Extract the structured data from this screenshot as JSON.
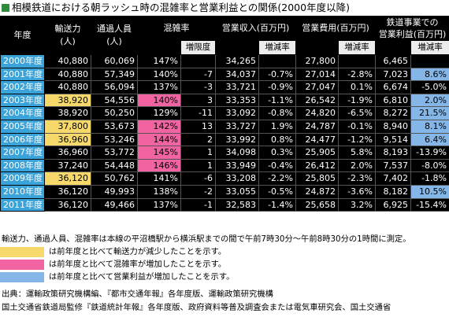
{
  "title": "相模鉄道における朝ラッシュ時の混雑率と営業利益との関係(2000年度以降)",
  "headers": {
    "year": "年度",
    "capacity": "輸送力\n(人)",
    "passengers": "通過人員\n(人)",
    "congestion": "混雑率",
    "revenue": "営業収入(百万円)",
    "expense": "営業費用(百万円)",
    "profit": "鉄道事業での\n営業利益(百万円)",
    "delta": "増限度",
    "change": "増減率"
  },
  "colors": {
    "yellow": "#f6d96a",
    "pink": "#f263a1",
    "blue": "#85b6e8",
    "year": "#3aa3d9"
  },
  "rows": [
    {
      "year": "2000年度",
      "cap": "40,880",
      "pax": "60,069",
      "cr": "147%",
      "dlt": "",
      "rev": "34,265",
      "revc": "",
      "exp": "27,800",
      "expc": "",
      "pro": "6,465",
      "proc": "",
      "hl": {}
    },
    {
      "year": "2001年度",
      "cap": "40,880",
      "pax": "57,349",
      "cr": "140%",
      "dlt": "-7",
      "rev": "34,037",
      "revc": "-0.7%",
      "exp": "27,014",
      "expc": "-2.8%",
      "pro": "7,023",
      "proc": "8.6%",
      "hl": {
        "proc": "b"
      }
    },
    {
      "year": "2002年度",
      "cap": "40,880",
      "pax": "56,094",
      "cr": "137%",
      "dlt": "-3",
      "rev": "33,721",
      "revc": "-0.9%",
      "exp": "27,047",
      "expc": "0.1%",
      "pro": "6,674",
      "proc": "-5.0%",
      "hl": {}
    },
    {
      "year": "2003年度",
      "cap": "38,920",
      "pax": "54,556",
      "cr": "140%",
      "dlt": "3",
      "rev": "33,353",
      "revc": "-1.1%",
      "exp": "26,542",
      "expc": "-1.9%",
      "pro": "6,810",
      "proc": "2.0%",
      "hl": {
        "cap": "y",
        "cr": "p",
        "proc": "b"
      }
    },
    {
      "year": "2004年度",
      "cap": "38,920",
      "pax": "50,250",
      "cr": "129%",
      "dlt": "-11",
      "rev": "33,092",
      "revc": "-0.8%",
      "exp": "24,820",
      "expc": "-6.5%",
      "pro": "8,272",
      "proc": "21.5%",
      "hl": {
        "proc": "b"
      }
    },
    {
      "year": "2005年度",
      "cap": "37,800",
      "pax": "53,673",
      "cr": "142%",
      "dlt": "13",
      "rev": "33,727",
      "revc": "1.9%",
      "exp": "24,787",
      "expc": "-0.1%",
      "pro": "8,940",
      "proc": "8.1%",
      "hl": {
        "cap": "y",
        "cr": "p",
        "proc": "b"
      }
    },
    {
      "year": "2006年度",
      "cap": "36,960",
      "pax": "53,246",
      "cr": "144%",
      "dlt": "2",
      "rev": "33,992",
      "revc": "0.8%",
      "exp": "24,477",
      "expc": "-1.2%",
      "pro": "9,514",
      "proc": "6.4%",
      "hl": {
        "cap": "y",
        "cr": "p",
        "proc": "b"
      }
    },
    {
      "year": "2007年度",
      "cap": "36,960",
      "pax": "53,772",
      "cr": "145%",
      "dlt": "1",
      "rev": "34,098",
      "revc": "0.3%",
      "exp": "25,905",
      "expc": "5.8%",
      "pro": "8,193",
      "proc": "-13.9%",
      "hl": {
        "cr": "p"
      }
    },
    {
      "year": "2008年度",
      "cap": "37,240",
      "pax": "54,448",
      "cr": "146%",
      "dlt": "1",
      "rev": "33,949",
      "revc": "-0.4%",
      "exp": "26,412",
      "expc": "2.0%",
      "pro": "7,537",
      "proc": "-8.0%",
      "hl": {
        "cr": "p"
      }
    },
    {
      "year": "2009年度",
      "cap": "36,120",
      "pax": "50,762",
      "cr": "141%",
      "dlt": "-6",
      "rev": "33,208",
      "revc": "-2.2%",
      "exp": "25,805",
      "expc": "-2.3%",
      "pro": "7,402",
      "proc": "-1.8%",
      "hl": {
        "cap": "y"
      }
    },
    {
      "year": "2010年度",
      "cap": "36,120",
      "pax": "49,993",
      "cr": "138%",
      "dlt": "-2",
      "rev": "33,055",
      "revc": "-0.5%",
      "exp": "24,872",
      "expc": "-3.6%",
      "pro": "8,182",
      "proc": "10.5%",
      "hl": {
        "proc": "b"
      }
    },
    {
      "year": "2011年度",
      "cap": "36,120",
      "pax": "49,466",
      "cr": "137%",
      "dlt": "-1",
      "rev": "32,583",
      "revc": "-1.4%",
      "exp": "25,658",
      "expc": "3.2%",
      "pro": "6,925",
      "proc": "-15.4%",
      "hl": {}
    }
  ],
  "note": "輸送力、通過人員、混雑率は本線の平沼橋駅から横浜駅までの間で午前7時30分～午前8時30分の1時間に測定。",
  "legend": [
    {
      "color": "y",
      "text": "は前年度と比べて輸送力が減少したことを示す。"
    },
    {
      "color": "p",
      "text": "は前年度と比べて混雑率が増加したことを示す。"
    },
    {
      "color": "b",
      "text": "は前年度と比べて営業利益が増加したことを示す。"
    }
  ],
  "source1": "出典：運輸政策研究機構編、『都市交通年報』各年度版、運輸政策研究機構",
  "source2": "国土交通省鉄道局監修『鉄道統計年報』各年度版、政府資料等普及調査会または電気車研究会、国土交通省"
}
